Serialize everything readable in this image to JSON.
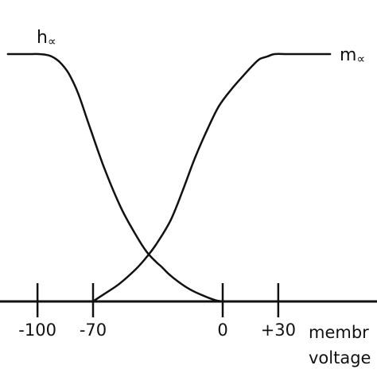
{
  "chart_data": {
    "type": "line",
    "xlabel": "membrane voltage",
    "xlabel_lines": [
      "membr",
      "voltage"
    ],
    "ylabel": "",
    "xlim": [
      -115,
      92
    ],
    "ylim": [
      0,
      1.08
    ],
    "xticks": [
      -100,
      -70,
      0,
      30
    ],
    "xtick_labels": [
      "-100",
      "-70",
      "0",
      "+30"
    ],
    "series": [
      {
        "name": "h∞",
        "label_text": "h",
        "label_subscript": "∝",
        "x": [
          -116,
          -104,
          -99,
          -94,
          -90,
          -87,
          -83,
          -78,
          -72,
          -64,
          -55,
          -47,
          -41,
          -36,
          -33,
          -29,
          -24,
          -18,
          -11,
          -4,
          0
        ],
        "y": [
          1.0,
          1.0,
          1.0,
          0.995,
          0.98,
          0.96,
          0.92,
          0.84,
          0.71,
          0.54,
          0.38,
          0.27,
          0.2,
          0.16,
          0.14,
          0.11,
          0.08,
          0.05,
          0.025,
          0.005,
          0.0
        ]
      },
      {
        "name": "m∞",
        "label_text": "m",
        "label_subscript": "∝",
        "x": [
          -70,
          -64,
          -56,
          -47,
          -41,
          -36,
          -28,
          -21,
          -15,
          -8,
          -2,
          5,
          12,
          17,
          20,
          24,
          28,
          35,
          47,
          58
        ],
        "y": [
          0.0,
          0.03,
          0.07,
          0.13,
          0.18,
          0.23,
          0.33,
          0.46,
          0.58,
          0.7,
          0.79,
          0.86,
          0.92,
          0.96,
          0.98,
          0.99,
          1.0,
          1.0,
          1.0,
          1.0
        ]
      }
    ],
    "colors": {
      "line": "#111111",
      "background": "#ffffff"
    }
  }
}
